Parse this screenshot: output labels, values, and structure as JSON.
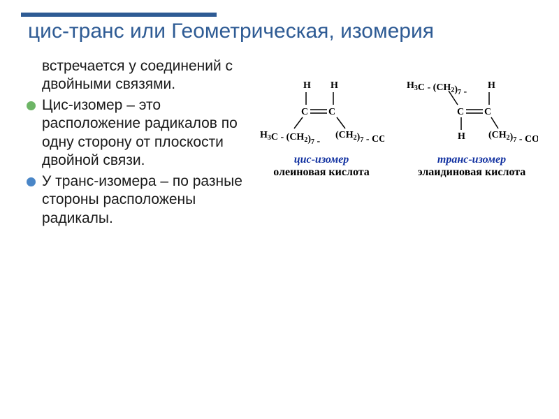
{
  "title": "цис-транс или Геометрическая, изомерия",
  "intro": "встречается у соединений с двойными связями.",
  "bullets": [
    {
      "text": "Цис-изомер – это расположение радикалов по одну сторону от плоскости двойной связи.",
      "color": "#6db566"
    },
    {
      "text": "У транс-изомера – по разные стороны расположены радикалы.",
      "color": "#4a86c7"
    }
  ],
  "molecules": {
    "cis": {
      "iso_label": "цис-изомер",
      "acid_label": "олеиновая кислота",
      "top_left": "H",
      "top_right": "H",
      "bottom_left": [
        "H",
        "3",
        "C - (CH",
        "2",
        ")",
        "7",
        " -"
      ],
      "bottom_right": [
        "(CH",
        "2",
        ")",
        "7",
        " - COOH"
      ]
    },
    "trans": {
      "iso_label": "транс-изомер",
      "acid_label": "элаидиновая кислота",
      "top_left": [
        "H",
        "3",
        "C - (CH",
        "2",
        ")",
        "7",
        " -"
      ],
      "top_right": "H",
      "bottom_left": "H",
      "bottom_right": [
        "(CH",
        "2",
        ")",
        "7",
        " - COOH"
      ]
    }
  },
  "colors": {
    "title": "#2e5b94",
    "bar": "#2e5b94",
    "iso_label": "#1030a0"
  }
}
